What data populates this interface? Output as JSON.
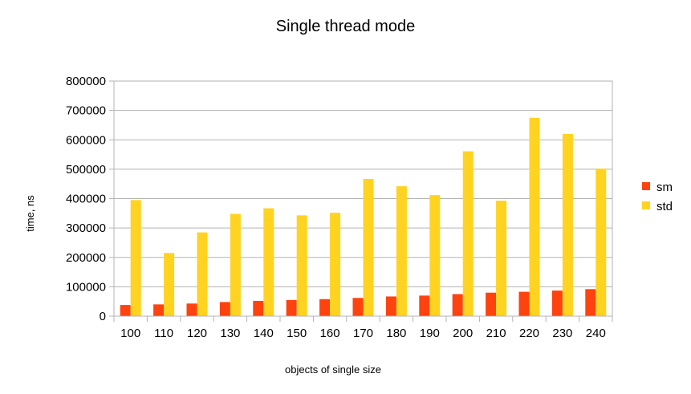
{
  "chart_data": {
    "type": "bar",
    "title": "Single thread mode",
    "xlabel": "objects of single size",
    "ylabel": "time, ns",
    "categories": [
      "100",
      "110",
      "120",
      "130",
      "140",
      "150",
      "160",
      "170",
      "180",
      "190",
      "200",
      "210",
      "220",
      "230",
      "240"
    ],
    "series": [
      {
        "name": "sm",
        "color": "#ff420e",
        "values": [
          38000,
          40000,
          43000,
          48000,
          52000,
          55000,
          58000,
          62000,
          67000,
          70000,
          75000,
          80000,
          83000,
          87000,
          92000
        ]
      },
      {
        "name": "std",
        "color": "#ffd320",
        "values": [
          395000,
          215000,
          285000,
          348000,
          367000,
          343000,
          352000,
          467000,
          442000,
          412000,
          561000,
          393000,
          675000,
          620000,
          502000
        ]
      }
    ],
    "ylim": [
      0,
      800000
    ],
    "yticks": [
      0,
      100000,
      200000,
      300000,
      400000,
      500000,
      600000,
      700000,
      800000
    ],
    "grid": true,
    "legend_position": "right"
  }
}
